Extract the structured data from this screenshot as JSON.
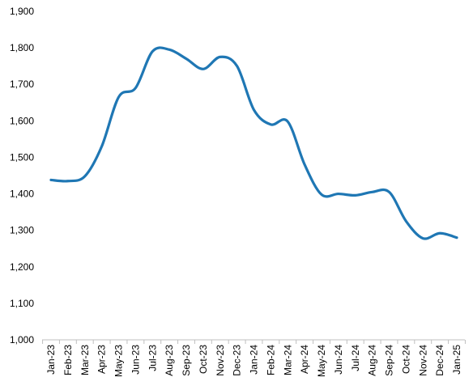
{
  "chart_data": {
    "type": "line",
    "title": "",
    "xlabel": "",
    "ylabel": "",
    "categories": [
      "Jan-23",
      "Feb-23",
      "Mar-23",
      "Apr-23",
      "May-23",
      "Jun-23",
      "Jul-23",
      "Aug-23",
      "Sep-23",
      "Oct-23",
      "Nov-23",
      "Dec-23",
      "Jan-24",
      "Feb-24",
      "Mar-24",
      "Apr-24",
      "May-24",
      "Jun-24",
      "Jul-24",
      "Aug-24",
      "Sep-24",
      "Oct-24",
      "Nov-24",
      "Dec-24",
      "Jan-25"
    ],
    "series": [
      {
        "values": [
          1438,
          1435,
          1448,
          1530,
          1665,
          1690,
          1790,
          1795,
          1770,
          1742,
          1775,
          1750,
          1630,
          1590,
          1598,
          1480,
          1398,
          1400,
          1396,
          1405,
          1405,
          1325,
          1278,
          1292,
          1280
        ]
      }
    ],
    "ylim": [
      1000,
      1900
    ],
    "yticks": [
      1000,
      1100,
      1200,
      1300,
      1400,
      1500,
      1600,
      1700,
      1800,
      1900
    ],
    "ytick_labels": [
      "1,000",
      "1,100",
      "1,200",
      "1,300",
      "1,400",
      "1,500",
      "1,600",
      "1,700",
      "1,800",
      "1,900"
    ],
    "grid": false,
    "legend": "none",
    "line_color": "#1F77B4"
  }
}
